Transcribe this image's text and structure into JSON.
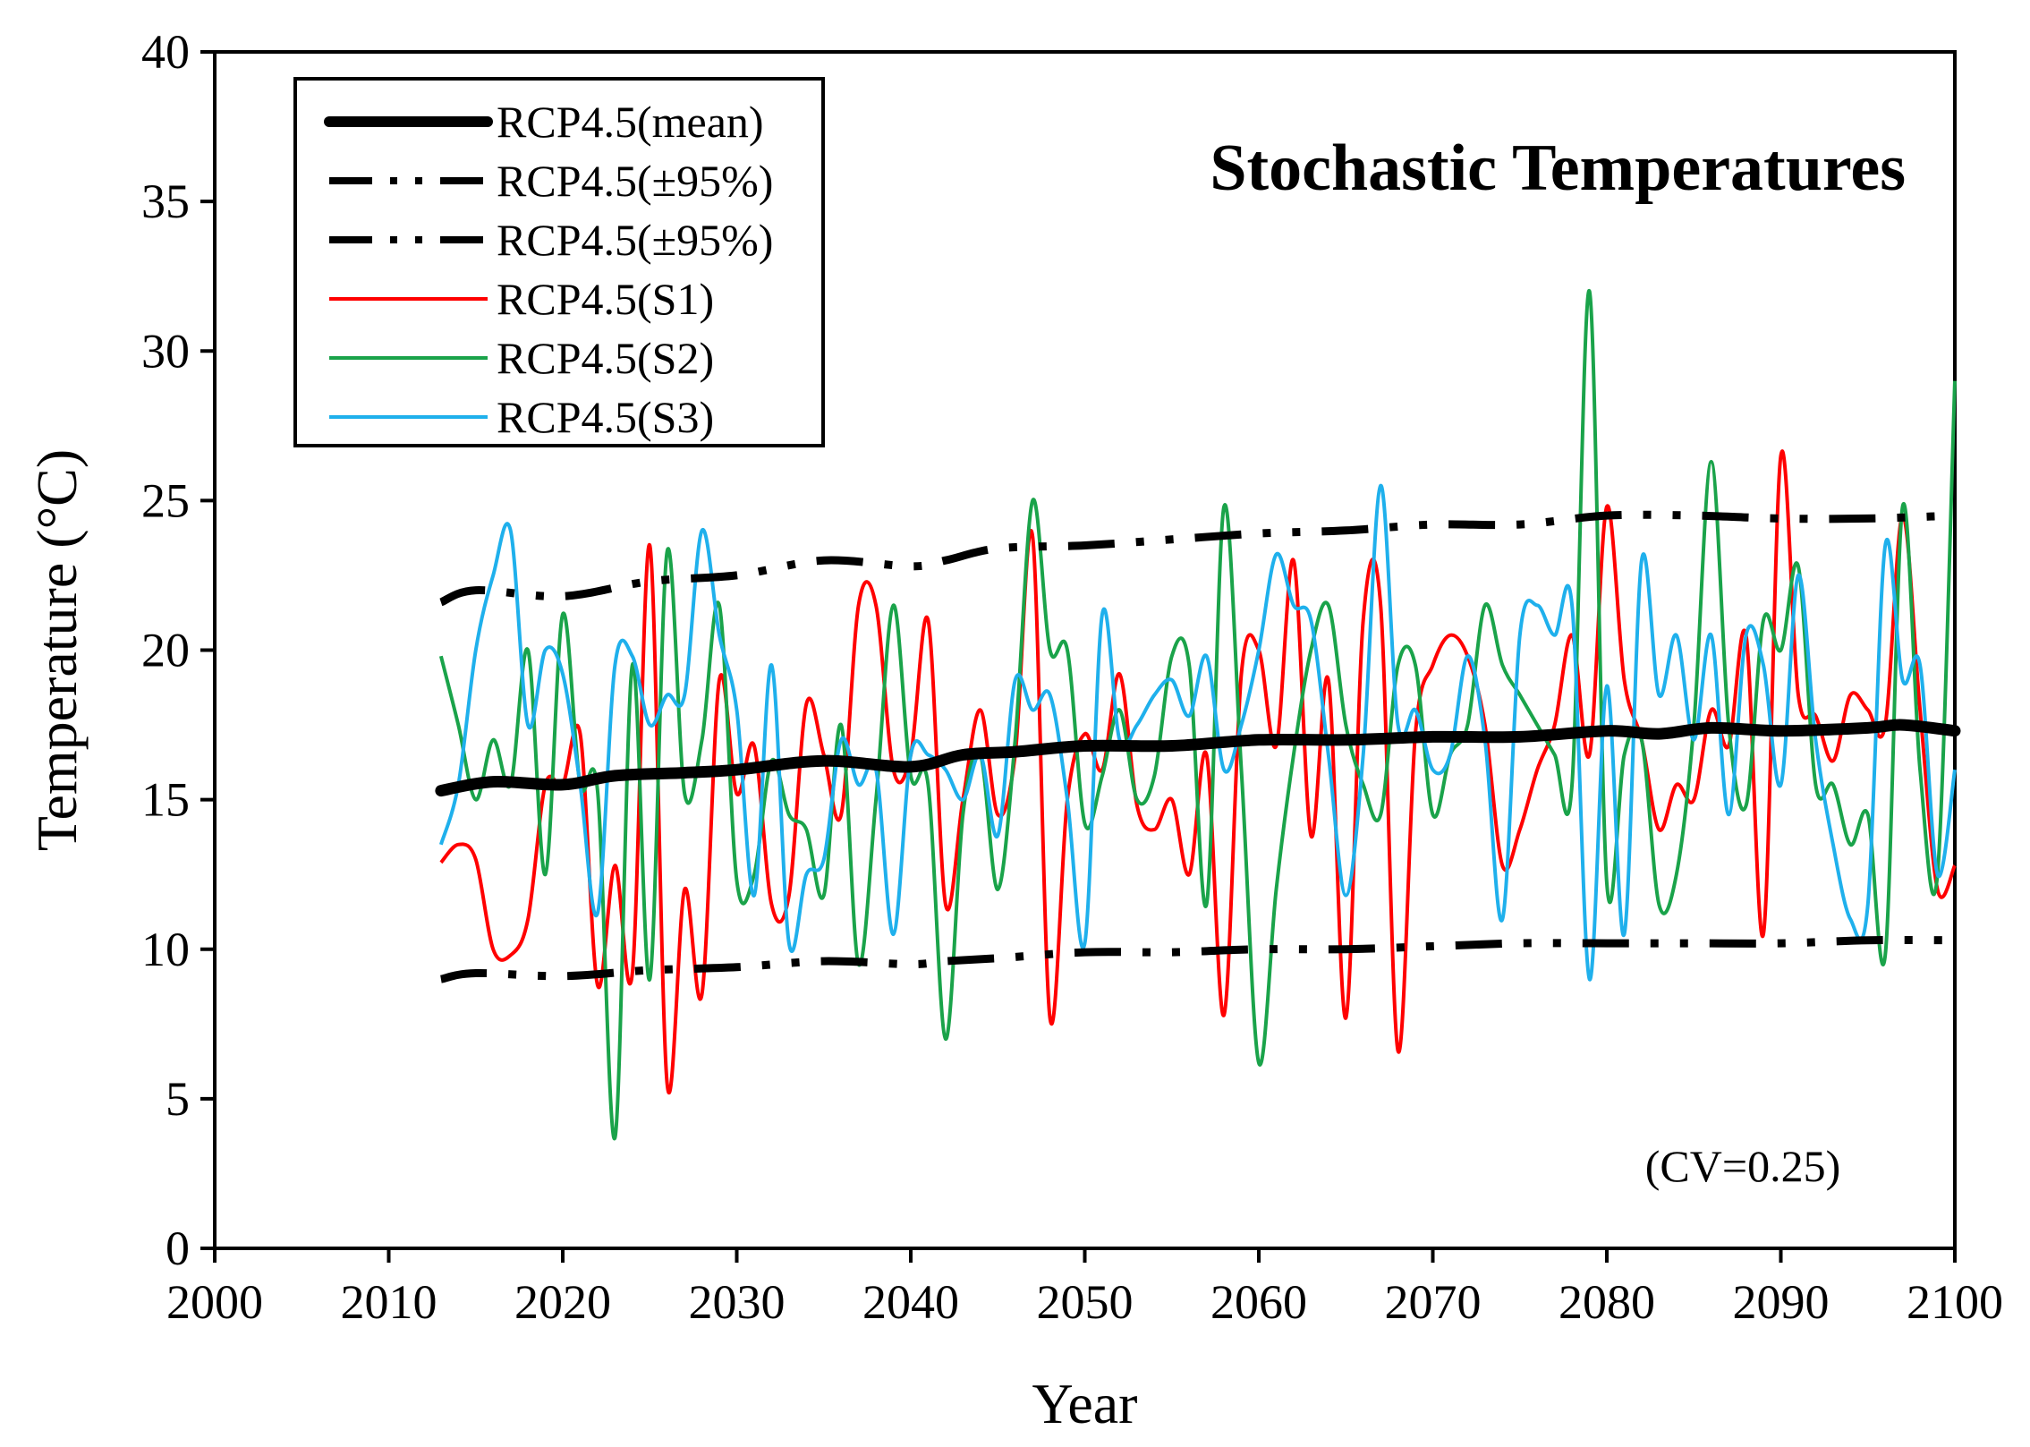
{
  "chart_data": {
    "type": "line",
    "title": "Stochastic Temperatures",
    "xlabel": "Year",
    "ylabel": "Temperature (°C)",
    "xlim": [
      2000,
      2100
    ],
    "ylim": [
      0,
      40
    ],
    "xticks": [
      2000,
      2010,
      2020,
      2030,
      2040,
      2050,
      2060,
      2070,
      2080,
      2090,
      2100
    ],
    "yticks": [
      0,
      5,
      10,
      15,
      20,
      25,
      30,
      35,
      40
    ],
    "legend_position": "top-left",
    "annotation": "(CV=0.25)",
    "series": [
      {
        "name": "RCP4.5(mean)",
        "color": "#000000",
        "style": "thick",
        "x": [
          2013,
          2016,
          2020,
          2023,
          2027,
          2030,
          2035,
          2040,
          2043,
          2046,
          2050,
          2055,
          2060,
          2065,
          2070,
          2075,
          2080,
          2083,
          2086,
          2090,
          2095,
          2097,
          2100
        ],
        "y": [
          15.3,
          15.6,
          15.5,
          15.8,
          15.9,
          16.0,
          16.3,
          16.1,
          16.5,
          16.6,
          16.8,
          16.8,
          17.0,
          17.0,
          17.1,
          17.1,
          17.3,
          17.2,
          17.4,
          17.3,
          17.4,
          17.5,
          17.3
        ]
      },
      {
        "name": "RCP4.5(±95%)",
        "color": "#000000",
        "style": "dashdot",
        "x": [
          2013,
          2015,
          2020,
          2025,
          2030,
          2035,
          2040,
          2042,
          2045,
          2050,
          2055,
          2060,
          2065,
          2070,
          2075,
          2080,
          2085,
          2090,
          2095,
          2100
        ],
        "y": [
          21.6,
          22.0,
          21.8,
          22.3,
          22.5,
          23.0,
          22.8,
          23.0,
          23.4,
          23.5,
          23.7,
          23.9,
          24.0,
          24.2,
          24.2,
          24.5,
          24.5,
          24.4,
          24.4,
          24.5
        ]
      },
      {
        "name": "RCP4.5(±95%)",
        "color": "#000000",
        "style": "dashdot",
        "x": [
          2013,
          2015,
          2020,
          2025,
          2030,
          2035,
          2040,
          2042,
          2045,
          2050,
          2055,
          2060,
          2065,
          2070,
          2075,
          2080,
          2085,
          2090,
          2095,
          2100
        ],
        "y": [
          9.0,
          9.2,
          9.1,
          9.3,
          9.4,
          9.6,
          9.5,
          9.6,
          9.7,
          9.9,
          9.9,
          10.0,
          10.0,
          10.1,
          10.2,
          10.2,
          10.2,
          10.2,
          10.3,
          10.3
        ]
      },
      {
        "name": "RCP4.5(S1)",
        "color": "#ff0000",
        "style": "thin",
        "x": [
          2013,
          2014,
          2015,
          2016,
          2017,
          2018,
          2019,
          2020,
          2021,
          2022,
          2023,
          2024,
          2025,
          2026,
          2027,
          2028,
          2029,
          2030,
          2031,
          2032,
          2033,
          2034,
          2035,
          2036,
          2037,
          2038,
          2039,
          2040,
          2041,
          2042,
          2043,
          2044,
          2045,
          2046,
          2047,
          2048,
          2049,
          2050,
          2051,
          2052,
          2053,
          2054,
          2055,
          2056,
          2057,
          2058,
          2059,
          2060,
          2061,
          2062,
          2063,
          2064,
          2065,
          2066,
          2067,
          2068,
          2069,
          2070,
          2071,
          2072,
          2073,
          2074,
          2075,
          2076,
          2077,
          2078,
          2079,
          2080,
          2081,
          2082,
          2083,
          2084,
          2085,
          2086,
          2087,
          2088,
          2089,
          2090,
          2091,
          2092,
          2093,
          2094,
          2095,
          2096,
          2097,
          2098,
          2099,
          2100
        ],
        "y": [
          12.9,
          13.5,
          13.0,
          10.0,
          9.8,
          11.0,
          15.5,
          15.5,
          17.2,
          8.8,
          12.8,
          9.2,
          23.5,
          5.5,
          12.0,
          8.5,
          19.0,
          15.2,
          16.8,
          11.5,
          11.8,
          18.2,
          16.5,
          14.5,
          21.5,
          21.5,
          16.0,
          16.5,
          21.0,
          11.5,
          15.0,
          18.0,
          14.5,
          16.5,
          23.8,
          7.7,
          15.0,
          17.2,
          16.0,
          19.2,
          14.8,
          14.0,
          15.0,
          12.5,
          16.5,
          7.8,
          19.2,
          20.0,
          16.8,
          23.0,
          13.8,
          19.0,
          7.7,
          21.0,
          21.5,
          6.6,
          17.2,
          19.5,
          20.5,
          19.8,
          17.5,
          12.8,
          14.0,
          16.0,
          17.5,
          20.5,
          16.5,
          24.8,
          19.0,
          17.0,
          14.0,
          15.5,
          15.0,
          18.0,
          16.8,
          20.5,
          10.5,
          26.5,
          18.5,
          17.8,
          16.3,
          18.5,
          18.0,
          17.5,
          24.5,
          18.0,
          12.0,
          12.8
        ]
      },
      {
        "name": "RCP4.5(S2)",
        "color": "#1aa34a",
        "style": "thin",
        "x": [
          2013,
          2014,
          2015,
          2016,
          2017,
          2018,
          2019,
          2020,
          2021,
          2022,
          2023,
          2024,
          2025,
          2026,
          2027,
          2028,
          2029,
          2030,
          2031,
          2032,
          2033,
          2034,
          2035,
          2036,
          2037,
          2038,
          2039,
          2040,
          2041,
          2042,
          2043,
          2044,
          2045,
          2046,
          2047,
          2048,
          2049,
          2050,
          2051,
          2052,
          2053,
          2054,
          2055,
          2056,
          2057,
          2058,
          2059,
          2060,
          2061,
          2062,
          2063,
          2064,
          2065,
          2066,
          2067,
          2068,
          2069,
          2070,
          2071,
          2072,
          2073,
          2074,
          2075,
          2076,
          2077,
          2078,
          2079,
          2080,
          2081,
          2082,
          2083,
          2084,
          2085,
          2086,
          2087,
          2088,
          2089,
          2090,
          2091,
          2092,
          2093,
          2094,
          2095,
          2096,
          2097,
          2098,
          2099,
          2100
        ],
        "y": [
          19.8,
          17.5,
          15.0,
          17.0,
          15.5,
          20.0,
          12.5,
          21.2,
          15.5,
          15.3,
          3.7,
          19.5,
          9.0,
          23.3,
          15.2,
          17.0,
          21.5,
          12.3,
          12.5,
          16.3,
          14.5,
          14.0,
          11.8,
          17.5,
          9.5,
          15.0,
          21.5,
          15.8,
          15.5,
          7.0,
          14.5,
          16.5,
          12.0,
          17.0,
          25.0,
          20.0,
          20.0,
          14.2,
          15.8,
          18.0,
          15.0,
          15.8,
          19.8,
          19.5,
          11.5,
          24.8,
          16.0,
          6.2,
          12.0,
          16.5,
          20.0,
          21.5,
          17.5,
          15.5,
          14.5,
          19.5,
          19.5,
          14.5,
          16.5,
          17.5,
          21.5,
          19.5,
          18.5,
          17.5,
          16.5,
          15.5,
          32.0,
          12.2,
          16.5,
          17.0,
          11.5,
          12.5,
          17.5,
          26.3,
          17.5,
          14.8,
          21.0,
          20.0,
          22.8,
          15.5,
          15.5,
          13.5,
          14.5,
          9.8,
          24.8,
          16.0,
          12.5,
          29.0
        ]
      },
      {
        "name": "RCP4.5(S3)",
        "color": "#1fb0ec",
        "style": "thin",
        "x": [
          2013,
          2014,
          2015,
          2016,
          2017,
          2018,
          2019,
          2020,
          2021,
          2022,
          2023,
          2024,
          2025,
          2026,
          2027,
          2028,
          2029,
          2030,
          2031,
          2032,
          2033,
          2034,
          2035,
          2036,
          2037,
          2038,
          2039,
          2040,
          2041,
          2042,
          2043,
          2044,
          2045,
          2046,
          2047,
          2048,
          2049,
          2050,
          2051,
          2052,
          2053,
          2054,
          2055,
          2056,
          2057,
          2058,
          2059,
          2060,
          2061,
          2062,
          2063,
          2064,
          2065,
          2066,
          2067,
          2068,
          2069,
          2070,
          2071,
          2072,
          2073,
          2074,
          2075,
          2076,
          2077,
          2078,
          2079,
          2080,
          2081,
          2082,
          2083,
          2084,
          2085,
          2086,
          2087,
          2088,
          2089,
          2090,
          2091,
          2092,
          2093,
          2094,
          2095,
          2096,
          2097,
          2098,
          2099,
          2100
        ],
        "y": [
          13.5,
          15.5,
          20.0,
          22.5,
          24.0,
          17.5,
          20.0,
          19.2,
          15.5,
          11.2,
          19.5,
          19.8,
          17.5,
          18.5,
          18.5,
          24.0,
          20.5,
          18.0,
          11.8,
          19.5,
          10.2,
          12.5,
          13.0,
          17.0,
          15.5,
          16.0,
          10.5,
          16.5,
          16.5,
          16.0,
          15.0,
          16.5,
          13.8,
          19.0,
          18.0,
          18.5,
          15.0,
          10.2,
          21.2,
          17.0,
          17.5,
          18.5,
          19.0,
          17.8,
          19.8,
          16.0,
          17.5,
          20.0,
          23.2,
          21.5,
          21.0,
          16.5,
          11.8,
          16.5,
          25.5,
          17.5,
          18.0,
          16.0,
          16.5,
          19.8,
          17.0,
          11.0,
          20.5,
          21.5,
          20.5,
          21.5,
          9.0,
          18.8,
          10.5,
          23.0,
          18.5,
          20.5,
          17.0,
          20.5,
          14.5,
          20.5,
          19.5,
          15.5,
          22.5,
          17.0,
          13.5,
          11.0,
          11.5,
          23.5,
          19.0,
          19.5,
          12.5,
          16.0
        ]
      }
    ]
  }
}
